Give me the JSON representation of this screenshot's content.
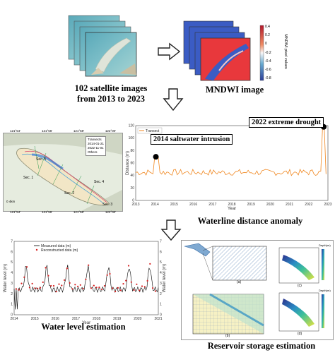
{
  "captions": {
    "satellite": "102 satellite images\nfrom 2013 to 2023",
    "mndwi": "MNDWI image",
    "waterline": "Waterline distance anomaly",
    "water_level": "Water level estimation",
    "reservoir": "Reservoir storage estimation"
  },
  "mndwi_colorbar": {
    "label": "MNDWI pixel values",
    "ticks": [
      "0.4",
      "0.2",
      "0",
      "-0.2",
      "-0.4",
      "-0.6",
      "-0.8"
    ]
  },
  "map_panel": {
    "lon_labels": [
      "121°54'",
      "121°56'",
      "121°58'",
      "122°00'"
    ],
    "lat_labels": [
      "31°24'",
      "31°22'",
      "31°20'",
      "31°18'"
    ],
    "legend": [
      "Transects",
      "2014-01-21",
      "2022-11-01",
      "Others"
    ],
    "sections": [
      "Sec. 5",
      "Sec. 1",
      "Sec. 4",
      "Sec. 2",
      "Sec. 3"
    ],
    "scale_label": "0 4km"
  },
  "waterline_chart": {
    "annotations": {
      "saltwater": "2014 saltwater intrusion",
      "drought": "2022 extreme drought"
    },
    "legend": "Transect",
    "ylabel": "Distance (m)",
    "xlabel": "Year",
    "xticks": [
      "2013",
      "2014",
      "2015",
      "2016",
      "2017",
      "2018",
      "2019",
      "2020",
      "2021",
      "2022",
      "2023"
    ],
    "yticks": [
      "0",
      "20",
      "40",
      "60",
      "80",
      "100",
      "120"
    ],
    "color": "#f0861e"
  },
  "water_level_chart": {
    "legend_measured": "Measured data (m)",
    "legend_reconstructed": "Reconstructed data (m)",
    "ylabel_left": "Water level (m)",
    "ylabel_right": "Water level (m)",
    "xlabel": "Year",
    "xticks": [
      "2014",
      "2015",
      "2016",
      "2017",
      "2018",
      "2019",
      "2020",
      "2021"
    ],
    "yticks": [
      "0",
      "1",
      "2",
      "3",
      "4",
      "5",
      "6",
      "7"
    ]
  },
  "reservoir_panels": {
    "labels": [
      "(a)",
      "(b)",
      "(c)",
      "(d)"
    ],
    "colorbar_title": "Depth(m)"
  },
  "colors": {
    "mndwi_water": "#e8383c",
    "mndwi_land": "#3b5cc4",
    "waterline_line": "#f0861e",
    "measured_line": "#000000",
    "reconstructed_points": "#d62020"
  }
}
